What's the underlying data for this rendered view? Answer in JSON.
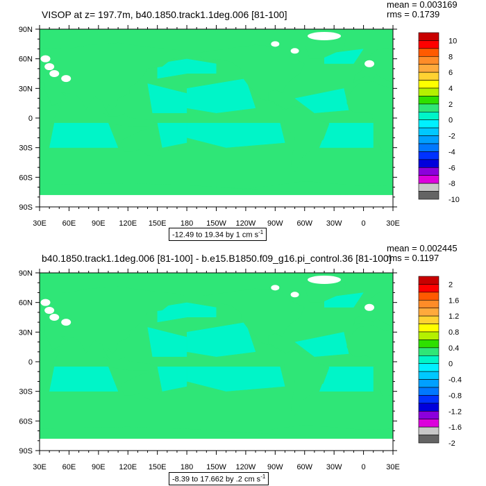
{
  "chart_data": [
    {
      "type": "heatmap",
      "title": "VISOP at z= 197.7m, b40.1850.track1.1deg.006 [81-100]",
      "mean_label": "mean = 0.003169",
      "rms_label": "rms = 0.1739",
      "range_label": "-12.49 to 19.34 by 1 cm s",
      "range_exponent": "-1",
      "x_tick_labels": [
        "30E",
        "60E",
        "90E",
        "120E",
        "150E",
        "180",
        "150W",
        "120W",
        "90W",
        "60W",
        "30W",
        "0",
        "30E"
      ],
      "y_tick_labels": [
        "90N",
        "60N",
        "30N",
        "0",
        "30S",
        "60S",
        "90S"
      ],
      "colorbar": {
        "labels": [
          "10",
          "8",
          "6",
          "4",
          "2",
          "0",
          "-2",
          "-4",
          "-6",
          "-8",
          "-10"
        ],
        "colors": [
          "#c80000",
          "#ff0000",
          "#ff5a00",
          "#ff8c28",
          "#ffaa3c",
          "#ffd232",
          "#ffff00",
          "#b4f000",
          "#2ee000",
          "#2fe677",
          "#00f5c8",
          "#00f0ff",
          "#00c8ff",
          "#00a0ff",
          "#0078ff",
          "#0032ff",
          "#0000dc",
          "#8c00dc",
          "#dc00dc",
          "#c8c8c8",
          "#646464"
        ]
      },
      "field": {
        "dominant_value_range": [
          -1,
          1
        ],
        "background_value_range": [
          0,
          1
        ],
        "minimum": -12.49,
        "maximum": 19.34
      }
    },
    {
      "type": "heatmap",
      "title": "b40.1850.track1.1deg.006 [81-100] - b.e15.B1850.f09_g16.pi_control.36 [81-100]",
      "mean_label": "mean = 0.002445",
      "rms_label": "rms = 0.1197",
      "range_label": "-8.39 to 17.662 by .2 cm s",
      "range_exponent": "-1",
      "x_tick_labels": [
        "30E",
        "60E",
        "90E",
        "120E",
        "150E",
        "180",
        "150W",
        "120W",
        "90W",
        "60W",
        "30W",
        "0",
        "30E"
      ],
      "y_tick_labels": [
        "90N",
        "60N",
        "30N",
        "0",
        "30S",
        "60S",
        "90S"
      ],
      "colorbar": {
        "labels": [
          "2",
          "1.6",
          "1.2",
          "0.8",
          "0.4",
          "0",
          "-0.4",
          "-0.8",
          "-1.2",
          "-1.6",
          "-2"
        ],
        "colors": [
          "#c80000",
          "#ff0000",
          "#ff5a00",
          "#ff8c28",
          "#ffaa3c",
          "#ffd232",
          "#ffff00",
          "#b4f000",
          "#2ee000",
          "#2fe677",
          "#00f5c8",
          "#00f0ff",
          "#00c8ff",
          "#00a0ff",
          "#0078ff",
          "#0032ff",
          "#0000dc",
          "#8c00dc",
          "#dc00dc",
          "#c8c8c8",
          "#646464"
        ]
      },
      "field": {
        "dominant_value_range": [
          -0.2,
          0.2
        ],
        "background_value_range": [
          0,
          0.2
        ],
        "minimum": -8.39,
        "maximum": 17.662
      }
    }
  ],
  "colors": {
    "land_fill": "#2fe677",
    "ocean_anomaly": "#00f5c8",
    "missing": "#ffffff"
  }
}
